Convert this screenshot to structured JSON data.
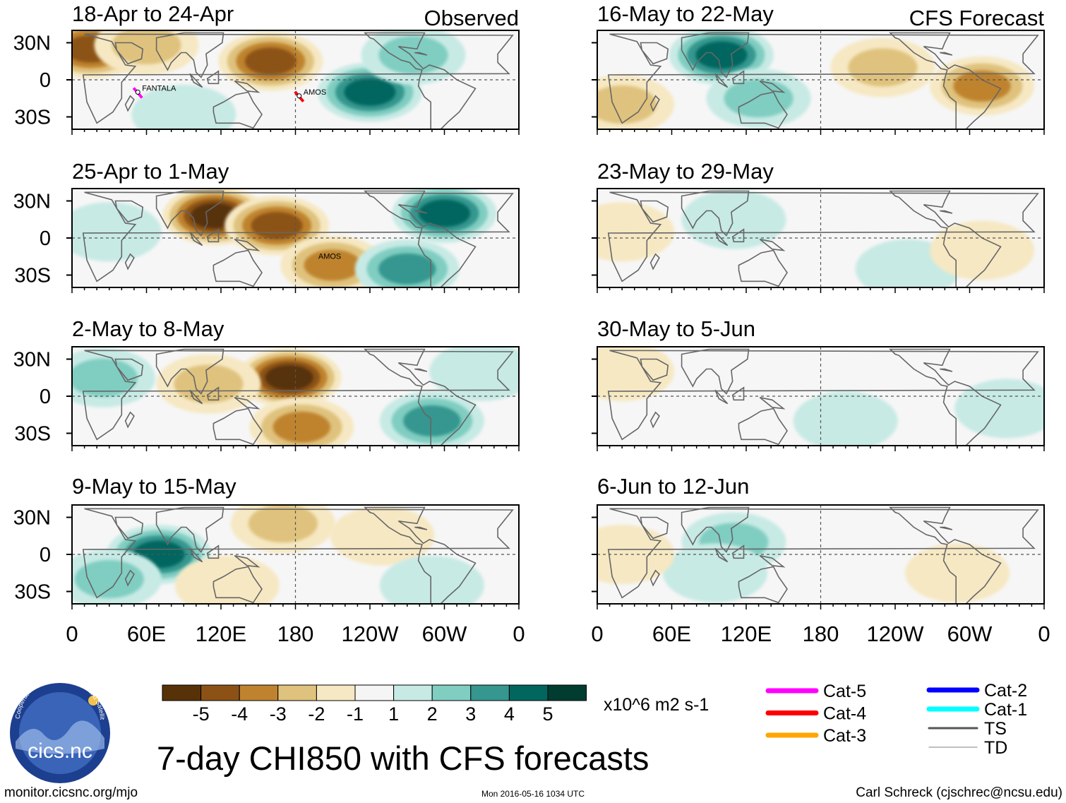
{
  "chart_data": {
    "type": "heatmap",
    "title": "7-day CHI850 with CFS forecasts",
    "units": "x10^6 m2 s-1",
    "column_labels": {
      "observed": "Observed",
      "forecast": "CFS Forecast"
    },
    "lat_labels": [
      "30N",
      "0",
      "30S"
    ],
    "lon_labels": [
      "0",
      "60E",
      "120E",
      "180",
      "120W",
      "60W",
      "0"
    ],
    "colorbar": {
      "bins": [
        -6,
        -5,
        -4,
        -3,
        -2,
        -1,
        1,
        2,
        3,
        4,
        5,
        6
      ],
      "tick_labels": [
        "-5",
        "-4",
        "-3",
        "-2",
        "-1",
        "1",
        "2",
        "3",
        "4",
        "5"
      ],
      "colors": [
        "#573108",
        "#8c5215",
        "#bf832f",
        "#dfc27d",
        "#f6e8c3",
        "#f5f5f5",
        "#c7eae5",
        "#80cdc1",
        "#35978f",
        "#01665e",
        "#003c30"
      ]
    },
    "panels": [
      {
        "period": "18-Apr to 24-Apr",
        "kind": "observed",
        "storms": [
          {
            "name": "FANTALA",
            "lon": 53,
            "lat": -10,
            "category": "Cat-5"
          },
          {
            "name": "AMOS",
            "lon": 183,
            "lat": -13,
            "category": "Cat-4"
          }
        ],
        "anomalies": [
          {
            "lon": 15,
            "lat": 25,
            "value": -4
          },
          {
            "lon": 60,
            "lat": 28,
            "value": -2
          },
          {
            "lon": 160,
            "lat": 15,
            "value": -4
          },
          {
            "lon": 240,
            "lat": -10,
            "value": 4
          },
          {
            "lon": 275,
            "lat": 20,
            "value": 2
          },
          {
            "lon": 90,
            "lat": -28,
            "value": 1
          }
        ]
      },
      {
        "period": "25-Apr to 1-May",
        "kind": "observed",
        "storms": [
          {
            "name": "AMOS",
            "lon": 195,
            "lat": -18,
            "category": "TD"
          }
        ],
        "anomalies": [
          {
            "lon": 115,
            "lat": 18,
            "value": -5
          },
          {
            "lon": 165,
            "lat": 10,
            "value": -4
          },
          {
            "lon": 210,
            "lat": -22,
            "value": -3
          },
          {
            "lon": 300,
            "lat": 20,
            "value": 4
          },
          {
            "lon": 270,
            "lat": -25,
            "value": 3
          },
          {
            "lon": 30,
            "lat": 5,
            "value": 1
          }
        ]
      },
      {
        "period": "2-May to 8-May",
        "kind": "observed",
        "storms": [],
        "anomalies": [
          {
            "lon": 175,
            "lat": 15,
            "value": -5
          },
          {
            "lon": 185,
            "lat": -25,
            "value": -3
          },
          {
            "lon": 110,
            "lat": 10,
            "value": -2
          },
          {
            "lon": 25,
            "lat": 15,
            "value": 2
          },
          {
            "lon": 290,
            "lat": -20,
            "value": 3
          },
          {
            "lon": 330,
            "lat": 20,
            "value": 1
          }
        ]
      },
      {
        "period": "9-May to 15-May",
        "kind": "observed",
        "storms": [],
        "anomalies": [
          {
            "lon": 70,
            "lat": 0,
            "value": 4
          },
          {
            "lon": 30,
            "lat": -20,
            "value": 2
          },
          {
            "lon": 170,
            "lat": 25,
            "value": -2
          },
          {
            "lon": 250,
            "lat": 15,
            "value": -1
          },
          {
            "lon": 125,
            "lat": -25,
            "value": -1
          },
          {
            "lon": 290,
            "lat": -25,
            "value": 1
          }
        ]
      },
      {
        "period": "16-May to 22-May",
        "kind": "forecast",
        "storms": [],
        "anomalies": [
          {
            "lon": 100,
            "lat": 20,
            "value": 4
          },
          {
            "lon": 130,
            "lat": -15,
            "value": 2
          },
          {
            "lon": 230,
            "lat": 10,
            "value": -2
          },
          {
            "lon": 310,
            "lat": -5,
            "value": -3
          },
          {
            "lon": 20,
            "lat": -20,
            "value": -2
          }
        ]
      },
      {
        "period": "23-May to 29-May",
        "kind": "forecast",
        "storms": [],
        "anomalies": [
          {
            "lon": 20,
            "lat": 5,
            "value": -1
          },
          {
            "lon": 110,
            "lat": 15,
            "value": 1
          },
          {
            "lon": 250,
            "lat": -25,
            "value": 1
          },
          {
            "lon": 310,
            "lat": -10,
            "value": -1
          }
        ]
      },
      {
        "period": "30-May to 5-Jun",
        "kind": "forecast",
        "storms": [],
        "anomalies": [
          {
            "lon": 20,
            "lat": 20,
            "value": -1
          },
          {
            "lon": 200,
            "lat": -20,
            "value": 1
          },
          {
            "lon": 330,
            "lat": -10,
            "value": 1
          }
        ]
      },
      {
        "period": "6-Jun to 12-Jun",
        "kind": "forecast",
        "storms": [],
        "anomalies": [
          {
            "lon": 110,
            "lat": 10,
            "value": 2
          },
          {
            "lon": 95,
            "lat": -15,
            "value": 1
          },
          {
            "lon": 290,
            "lat": -15,
            "value": -1
          },
          {
            "lon": 20,
            "lat": 0,
            "value": -1
          }
        ]
      }
    ]
  },
  "legend": {
    "tracks": [
      {
        "label": "Cat-5",
        "color": "#ff00ff"
      },
      {
        "label": "Cat-4",
        "color": "#ff0000"
      },
      {
        "label": "Cat-3",
        "color": "#ffa500"
      },
      {
        "label": "Cat-2",
        "color": "#0000ff"
      },
      {
        "label": "Cat-1",
        "color": "#00ffff"
      },
      {
        "label": "TS",
        "color": "#555555"
      },
      {
        "label": "TD",
        "color": "#aaaaaa"
      }
    ]
  },
  "footer": {
    "left": "monitor.cicsnc.org/mjo",
    "center": "Mon 2016-05-16 1034 UTC",
    "right": "Carl Schreck (cjschrec@ncsu.edu)"
  },
  "logo": {
    "text": "cics.nc",
    "ring_text": "Cooperative Institute for Climate and Satellites"
  }
}
